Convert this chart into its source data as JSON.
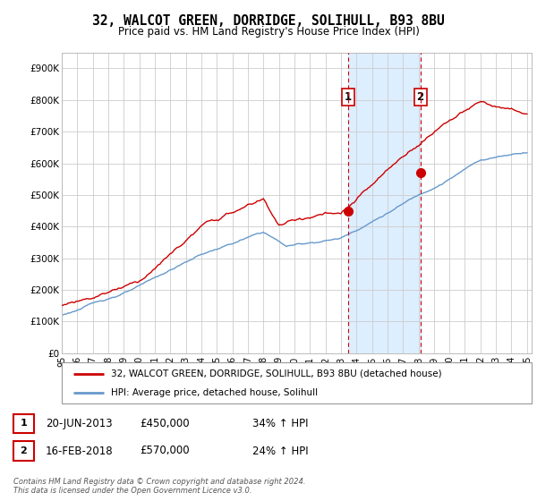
{
  "title": "32, WALCOT GREEN, DORRIDGE, SOLIHULL, B93 8BU",
  "subtitle": "Price paid vs. HM Land Registry's House Price Index (HPI)",
  "ylim": [
    0,
    950000
  ],
  "yticks": [
    0,
    100000,
    200000,
    300000,
    400000,
    500000,
    600000,
    700000,
    800000,
    900000
  ],
  "ytick_labels": [
    "£0",
    "£100K",
    "£200K",
    "£300K",
    "£400K",
    "£500K",
    "£600K",
    "£700K",
    "£800K",
    "£900K"
  ],
  "hpi_color": "#6699cc",
  "price_color": "#cc0000",
  "shaded_color": "#ddeeff",
  "vline_color": "#cc0000",
  "t1": 2013.47,
  "t2": 2018.12,
  "marker1_price": 450000,
  "marker2_price": 570000,
  "legend_label1": "32, WALCOT GREEN, DORRIDGE, SOLIHULL, B93 8BU (detached house)",
  "legend_label2": "HPI: Average price, detached house, Solihull",
  "table_row1": [
    "1",
    "20-JUN-2013",
    "£450,000",
    "34% ↑ HPI"
  ],
  "table_row2": [
    "2",
    "16-FEB-2018",
    "£570,000",
    "24% ↑ HPI"
  ],
  "footer": "Contains HM Land Registry data © Crown copyright and database right 2024.\nThis data is licensed under the Open Government Licence v3.0.",
  "background_color": "#ffffff",
  "grid_color": "#cccccc"
}
